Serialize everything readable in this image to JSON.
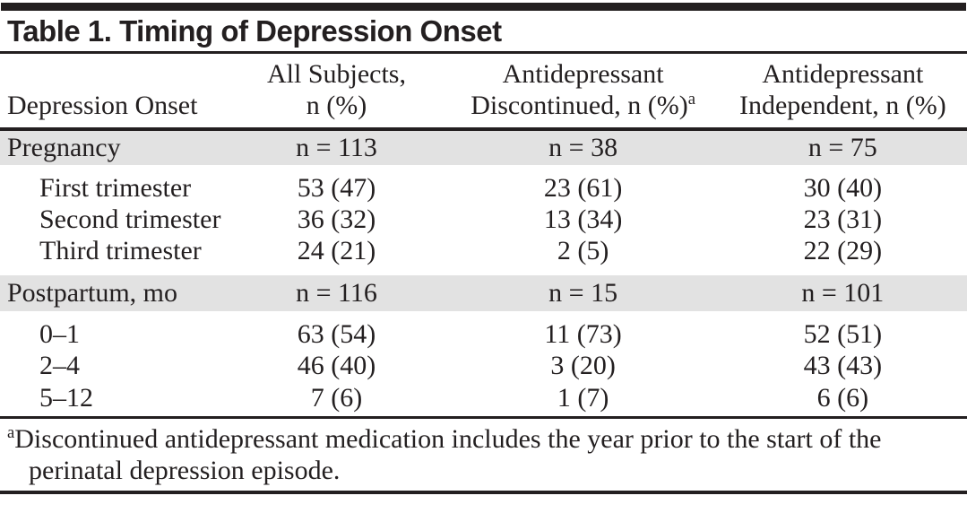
{
  "colors": {
    "text": "#231f20",
    "section_band": "#e2e2e2",
    "rule": "#231f20"
  },
  "title": "Table 1. Timing of Depression Onset",
  "header": {
    "row_label": "Depression Onset",
    "all_line1": "All Subjects,",
    "all_line2": "n (%)",
    "disc_line1": "Antidepressant",
    "disc_line2": "Discontinued, n (%)",
    "disc_sup": "a",
    "indep_line1": "Antidepressant",
    "indep_line2": "Independent, n (%)"
  },
  "rows": [
    {
      "type": "section",
      "label": "Pregnancy",
      "all": "n = 113",
      "disc": "n = 38",
      "indep": "n = 75"
    },
    {
      "type": "sub",
      "label": "First trimester",
      "all": "53 (47)",
      "disc": "23 (61)",
      "indep": "30 (40)"
    },
    {
      "type": "sub",
      "label": "Second trimester",
      "all": "36 (32)",
      "disc": "13 (34)",
      "indep": "23 (31)"
    },
    {
      "type": "sub",
      "label": "Third trimester",
      "all": "24 (21)",
      "disc": "2 (5)",
      "indep": "22 (29)"
    },
    {
      "type": "section",
      "label": "Postpartum, mo",
      "all": "n = 116",
      "disc": "n = 15",
      "indep": "n = 101"
    },
    {
      "type": "sub",
      "label": "0–1",
      "all": "63 (54)",
      "disc": "11 (73)",
      "indep": "52 (51)"
    },
    {
      "type": "sub",
      "label": "2–4",
      "all": "46 (40)",
      "disc": "3 (20)",
      "indep": "43 (43)"
    },
    {
      "type": "sub",
      "label": "5–12",
      "all": "7 (6)",
      "disc": "1 (7)",
      "indep": "6 (6)"
    }
  ],
  "footnote": {
    "marker": "a",
    "text": "Discontinued antidepressant medication includes the year prior to the start of the perinatal depression episode."
  }
}
